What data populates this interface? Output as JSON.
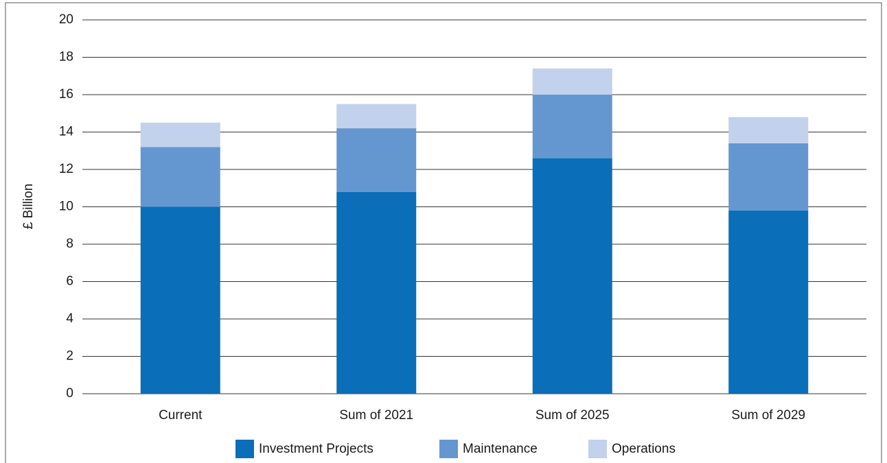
{
  "chart_data": {
    "type": "stacked_bar",
    "y_label": "£ Billion",
    "categories": [
      "Current",
      "Sum of 2021",
      "Sum of 2025",
      "Sum of 2029"
    ],
    "series": [
      {
        "name": "Investment Projects",
        "color": "#0a6eb8",
        "values": [
          10.0,
          10.8,
          12.6,
          9.8
        ]
      },
      {
        "name": "Maintenance",
        "color": "#6497d0",
        "values": [
          3.2,
          3.4,
          3.4,
          3.6
        ]
      },
      {
        "name": "Operations",
        "color": "#c2d1ec",
        "values": [
          1.3,
          1.3,
          1.4,
          1.4
        ]
      }
    ],
    "ylim": [
      0,
      20
    ],
    "yticks": [
      0,
      2,
      4,
      6,
      8,
      10,
      12,
      14,
      16,
      18,
      20
    ],
    "grid": true,
    "legend": "bottom"
  }
}
